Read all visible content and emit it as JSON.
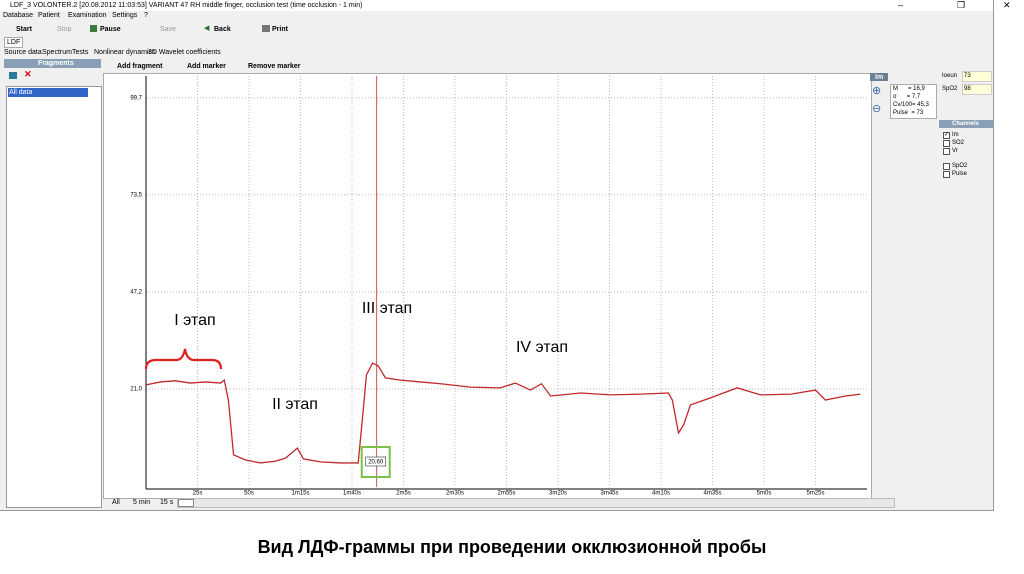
{
  "window": {
    "title": "LDF_3 VOLONTER.2 [20.08.2012 11:03:53] VARIANT 47 RH middle finger, occlusion test (time occlusion - 1 min)",
    "menu": [
      "Database",
      "Patient",
      "Examination",
      "Settings",
      "?"
    ],
    "toolbar": [
      "Start",
      "Stop",
      "Pause",
      "Save",
      "Back",
      "Print"
    ],
    "tab": "LDF",
    "subtabs": [
      "Source data",
      "Spectrum",
      "Tests",
      "Nonlinear dynamics",
      "3D Wavelet coefficients"
    ],
    "fragments": {
      "title": "Fragments",
      "items": [
        "All data"
      ]
    },
    "chart_toolbar": [
      "Add fragment",
      "Add marker",
      "Remove marker"
    ],
    "scale_buttons": [
      "All",
      "5 min",
      "15 s"
    ],
    "stats": {
      "title": "Im",
      "lines": [
        "M      = 16,9",
        "σ      = 7,7",
        "Cv/100= 45,3",
        "Pulse  = 73"
      ]
    },
    "readouts": [
      {
        "label": "Ioeun",
        "value": 73
      },
      {
        "label": "SpO2",
        "value": 98
      }
    ],
    "channels": {
      "title": "Channels",
      "items": [
        {
          "label": "Im",
          "checked": true
        },
        {
          "label": "SO2",
          "checked": false
        },
        {
          "label": "Vr",
          "checked": false
        },
        {
          "label": "SpO2",
          "checked": false
        },
        {
          "label": "Pulse",
          "checked": false
        }
      ]
    }
  },
  "chart_data": {
    "type": "line",
    "color": "#c0282a",
    "x": [
      0,
      7,
      14.3,
      21.6,
      28.9,
      36.2,
      38,
      40,
      42.5,
      48.3,
      55.6,
      62.9,
      67.7,
      73.5,
      76.4,
      84.7,
      94.4,
      103,
      105,
      107,
      110,
      112.8,
      116.2,
      123.5,
      133.2,
      143,
      157.5,
      172,
      179.3,
      186.6,
      192,
      196.4,
      211,
      225.5,
      240,
      253.6,
      255.5,
      258.5,
      261,
      264.3,
      274,
      287,
      298.3,
      313,
      325,
      329.8,
      339.6,
      346.8
    ],
    "values": [
      22.1,
      22.9,
      23.2,
      22.6,
      22.9,
      22.6,
      23.4,
      18.0,
      3.2,
      1.8,
      1.0,
      1.5,
      2.3,
      5.0,
      2.1,
      1.3,
      1.0,
      1.0,
      12.6,
      24.8,
      28.0,
      27.2,
      24.0,
      23.4,
      22.9,
      22.4,
      21.5,
      21.3,
      22.6,
      20.7,
      22.4,
      19.1,
      19.9,
      19.4,
      19.6,
      19.9,
      18.0,
      9.1,
      11.3,
      16.7,
      18.6,
      21.3,
      19.4,
      19.6,
      20.7,
      18.0,
      19.1,
      19.6
    ],
    "xlim": [
      0,
      350
    ],
    "ylim": [
      -5.5,
      105.6
    ],
    "xticks": [
      {
        "value": 25,
        "label": "25s"
      },
      {
        "value": 50,
        "label": "50s"
      },
      {
        "value": 75,
        "label": "1m15s"
      },
      {
        "value": 100,
        "label": "1m40s"
      },
      {
        "value": 125,
        "label": "2m5s"
      },
      {
        "value": 150,
        "label": "2m30s"
      },
      {
        "value": 175,
        "label": "2m55s"
      },
      {
        "value": 200,
        "label": "3m20s"
      },
      {
        "value": 225,
        "label": "3m45s"
      },
      {
        "value": 250,
        "label": "4m10s"
      },
      {
        "value": 275,
        "label": "4m35s"
      },
      {
        "value": 300,
        "label": "5m0s"
      },
      {
        "value": 325,
        "label": "5m25s"
      }
    ],
    "yticks": [
      {
        "value": 21.0,
        "label": "21,0"
      },
      {
        "value": 47.2,
        "label": "47,2"
      },
      {
        "value": 73.5,
        "label": "73,5"
      },
      {
        "value": 99.7,
        "label": "99,7"
      }
    ],
    "grid": true,
    "cursor": {
      "x": 112,
      "value": 20.6,
      "value_label": "20,60",
      "color": "#c0282a"
    },
    "annotations": [
      "I этап",
      "II этап",
      "III этап",
      "IV этап"
    ]
  },
  "caption": "Вид ЛДФ-граммы при проведении окклюзионной пробы"
}
